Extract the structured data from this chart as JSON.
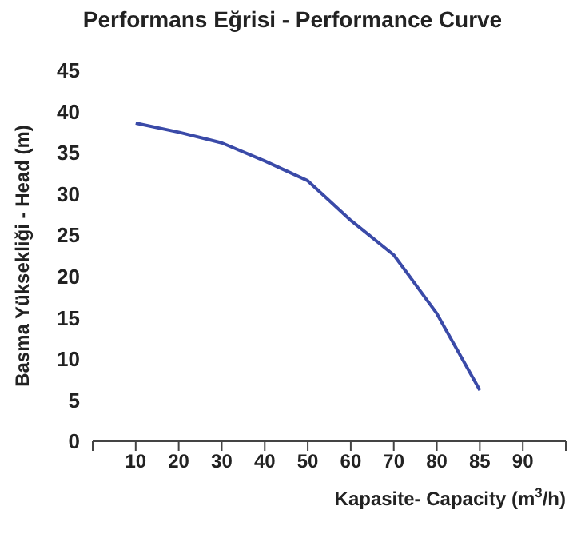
{
  "chart_data": {
    "type": "line",
    "title": "Performans Eğrisi - Performance Curve",
    "xlabel": "Kapasite- Capacity (m$^{3}$/h)",
    "ylabel": "Basma Yüksekliği - Head (m)",
    "categories": [
      null,
      "10",
      "20",
      "30",
      "40",
      "50",
      "60",
      "70",
      "80",
      "85",
      "90",
      null
    ],
    "series": [
      {
        "color": "#3a4aa8",
        "values": [
          null,
          38.6,
          37.5,
          36.2,
          34,
          31.6,
          26.8,
          22.6,
          15.5,
          6.2,
          null,
          null
        ]
      }
    ],
    "ylim": [
      0,
      45
    ],
    "yticks": [
      0,
      5,
      10,
      15,
      20,
      25,
      30,
      35,
      40,
      45
    ],
    "grid": false,
    "legend": false,
    "marker": "none",
    "line_style": "solid"
  }
}
